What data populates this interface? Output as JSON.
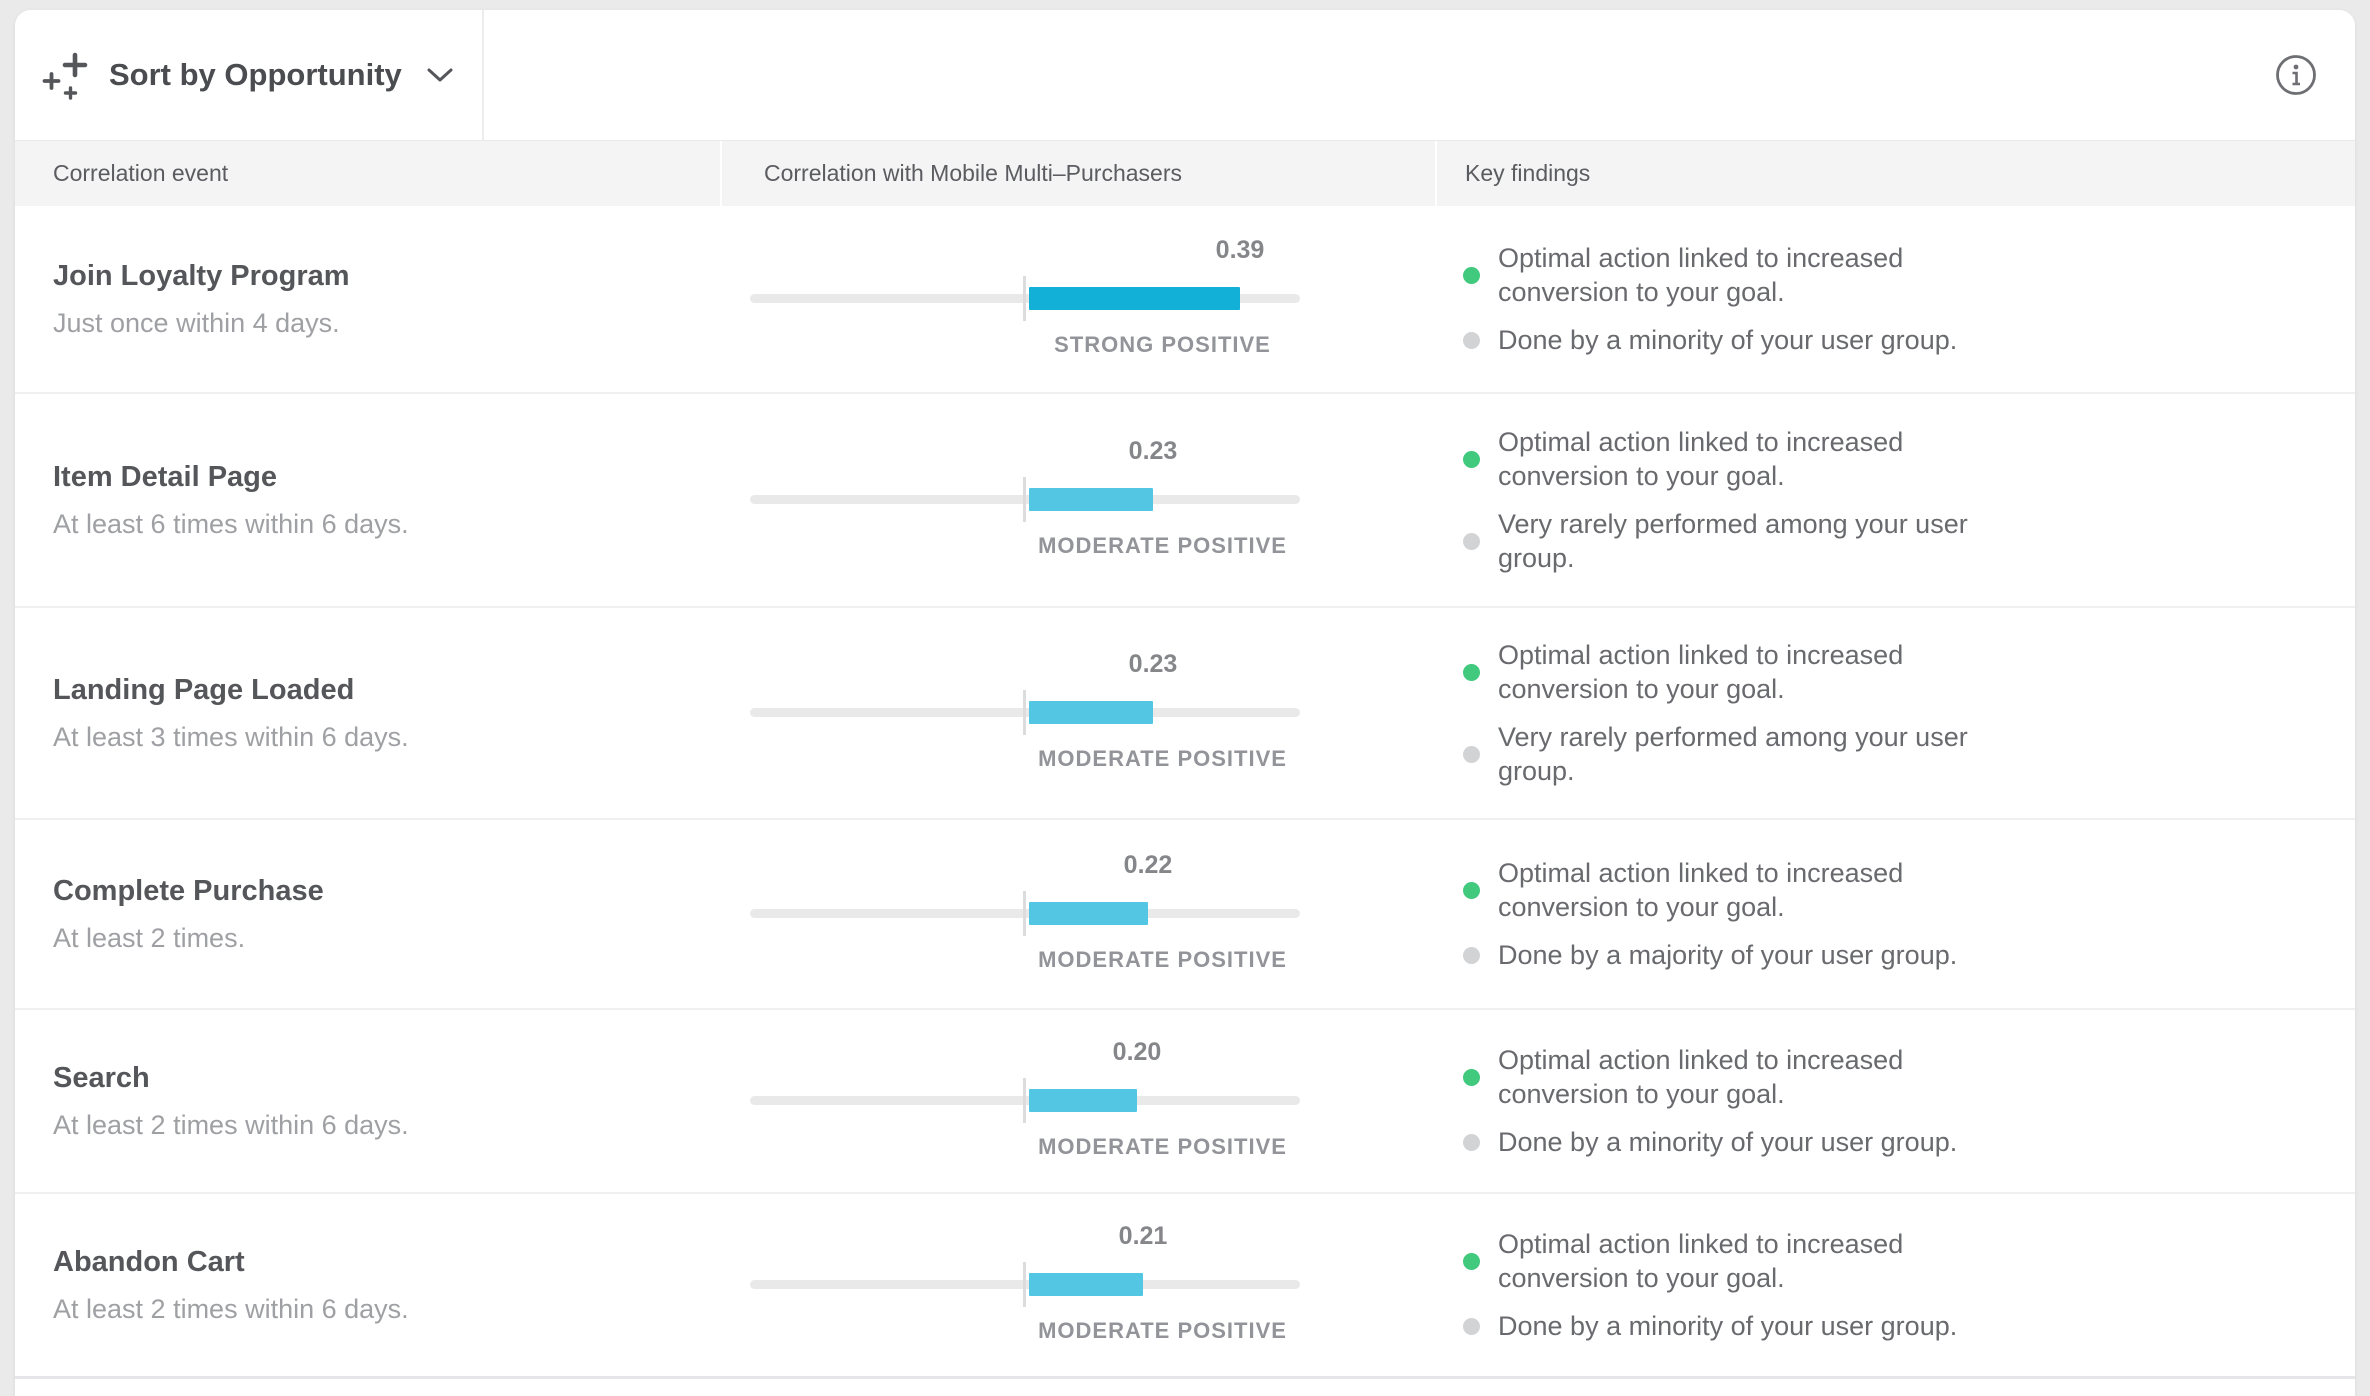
{
  "toolbar": {
    "sort_label": "Sort by Opportunity",
    "sparkles_icon": "sparkles-plus-icon",
    "chevron_icon": "chevron-down-icon",
    "info_icon": "info-circle-icon"
  },
  "table": {
    "columns": [
      "Correlation event",
      "Correlation with Mobile Multi–Purchasers",
      "Key findings"
    ],
    "rows": [
      {
        "event": "Join Loyalty Program",
        "criteria": "Just once within 4 days.",
        "value": "0.39",
        "value_num": 0.39,
        "strength": "STRONG POSITIVE",
        "bar_color": "#12afd7",
        "findings": [
          {
            "bullet": "green",
            "color": "#41c97e",
            "text": "Optimal action linked to increased conversion to your goal."
          },
          {
            "bullet": "gray",
            "color": "#d2d3d5",
            "text": "Done by a minority of your user group."
          }
        ]
      },
      {
        "event": "Item Detail Page",
        "criteria": "At least 6 times within 6 days.",
        "value": "0.23",
        "value_num": 0.23,
        "strength": "MODERATE POSITIVE",
        "bar_color": "#52c6e3",
        "findings": [
          {
            "bullet": "green",
            "color": "#41c97e",
            "text": "Optimal action linked to increased conversion to your goal."
          },
          {
            "bullet": "gray",
            "color": "#d2d3d5",
            "text": "Very rarely performed among your user group."
          }
        ]
      },
      {
        "event": "Landing Page Loaded",
        "criteria": "At least 3 times within 6 days.",
        "value": "0.23",
        "value_num": 0.23,
        "strength": "MODERATE POSITIVE",
        "bar_color": "#52c6e3",
        "findings": [
          {
            "bullet": "green",
            "color": "#41c97e",
            "text": "Optimal action linked to increased conversion to your goal."
          },
          {
            "bullet": "gray",
            "color": "#d2d3d5",
            "text": "Very rarely performed among your user group."
          }
        ]
      },
      {
        "event": "Complete Purchase",
        "criteria": "At least 2 times.",
        "value": "0.22",
        "value_num": 0.22,
        "strength": "MODERATE POSITIVE",
        "bar_color": "#52c6e3",
        "findings": [
          {
            "bullet": "green",
            "color": "#41c97e",
            "text": "Optimal action linked to increased conversion to your goal."
          },
          {
            "bullet": "gray",
            "color": "#d2d3d5",
            "text": "Done by a majority of your user group."
          }
        ]
      },
      {
        "event": "Search",
        "criteria": "At least 2 times within 6 days.",
        "value": "0.20",
        "value_num": 0.2,
        "strength": "MODERATE POSITIVE",
        "bar_color": "#52c6e3",
        "findings": [
          {
            "bullet": "green",
            "color": "#41c97e",
            "text": "Optimal action linked to increased conversion to your goal."
          },
          {
            "bullet": "gray",
            "color": "#d2d3d5",
            "text": "Done by a minority of your user group."
          }
        ]
      },
      {
        "event": "Abandon Cart",
        "criteria": "At least 2 times within 6 days.",
        "value": "0.21",
        "value_num": 0.21,
        "strength": "MODERATE POSITIVE",
        "bar_color": "#52c6e3",
        "findings": [
          {
            "bullet": "green",
            "color": "#41c97e",
            "text": "Optimal action linked to increased conversion to your goal."
          },
          {
            "bullet": "gray",
            "color": "#d2d3d5",
            "text": "Done by a minority of your user group."
          }
        ]
      }
    ]
  },
  "colors": {
    "strong_positive_bar": "#12afd7",
    "moderate_positive_bar": "#52c6e3",
    "green_bullet": "#41c97e",
    "gray_bullet": "#d2d3d5",
    "track": "#e9e9ea",
    "header_bg": "#f4f4f5"
  }
}
